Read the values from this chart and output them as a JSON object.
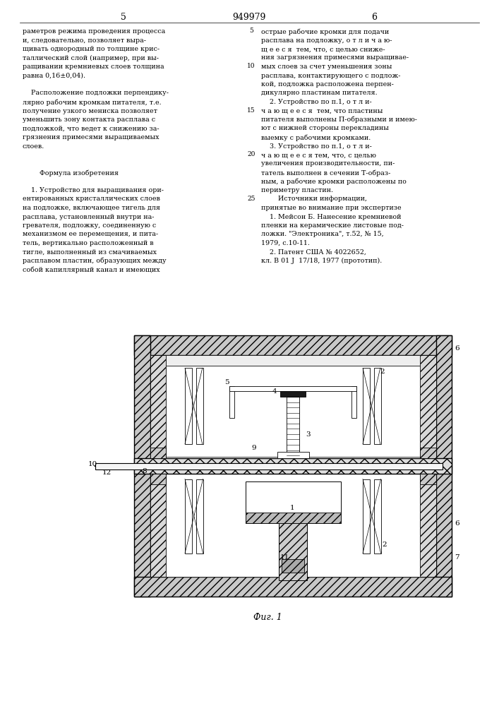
{
  "page_color": "#ffffff",
  "header": {
    "left_num": "5",
    "center_num": "949979",
    "right_num": "6"
  },
  "left_column_text": [
    "раметров режима проведения процесса",
    "и, следовательно, позволяет выра-",
    "щивать однородный по толщине крис-",
    "таллический слой (например, при вы-",
    "ращивании кремниевых слоев толщина",
    "равна 0,16±0,04).",
    "",
    "    Расположение подложки перпендику-",
    "лярно рабочим кромкам питателя, т.е.",
    "получение узкого мениска позволяет",
    "уменьшить зону контакта расплава с",
    "подложкой, что ведет к снижению за-",
    "грязнения примесями выращиваемых",
    "слоев.",
    "",
    "",
    "        Формула изобретения",
    "",
    "    1. Устройство для выращивания ори-",
    "ентированных кристаллических слоев",
    "на подложке, включающее тигель для",
    "расплава, установленный внутри на-",
    "гревателя, подложку, соединенную с",
    "механизмом ее перемещения, и пита-",
    "тель, вертикально расположенный в",
    "тигле, выполненный из смачиваемых",
    "расплавом пластин, образующих между",
    "собой капиллярный канал и имеющих"
  ],
  "right_column_text": [
    "острые рабочие кромки для подачи",
    "расплава на подложку, о т л и ч а ю-",
    "щ е е с я  тем, что, с целью сниже-",
    "ния загрязнения примесями выращивае-",
    "мых слоев за счет уменьшения зоны",
    "расплава, контактирующего с подлож-",
    "кой, подложка расположена перпен-",
    "дикулярно пластинам питателя.",
    "    2. Устройство по п.1, о т л и-",
    "ч а ю щ е е с я  тем, что пластины",
    "питателя выполнены П-образными и имею-",
    "ют с нижней стороны перекладины",
    "выемку с рабочими кромками.",
    "    3. Устройство по п.1, о т л и-",
    "ч а ю щ е е с я тем, что, с целью",
    "увеличения производительности, пи-",
    "татель выполнен в сечении Т-образ-",
    "ным, а рабочие кромки расположены по",
    "периметру пластин.",
    "        Источники информации,",
    "принятые во внимание при экспертизе",
    "    1. Мейсон Б. Нанесение кремниевой",
    "пленки на керамические листовые под-",
    "ложки. \"Электроника\", т.52, № 15,",
    "1979, с.10-11.",
    "    2. Патент США № 4022652,",
    "кл. В 01 J  17/18, 1977 (прототип)."
  ],
  "line_number_rows": {
    "0": "5",
    "4": "10",
    "9": "15",
    "14": "20",
    "19": "25"
  },
  "fig_caption": "Фиг. 1"
}
